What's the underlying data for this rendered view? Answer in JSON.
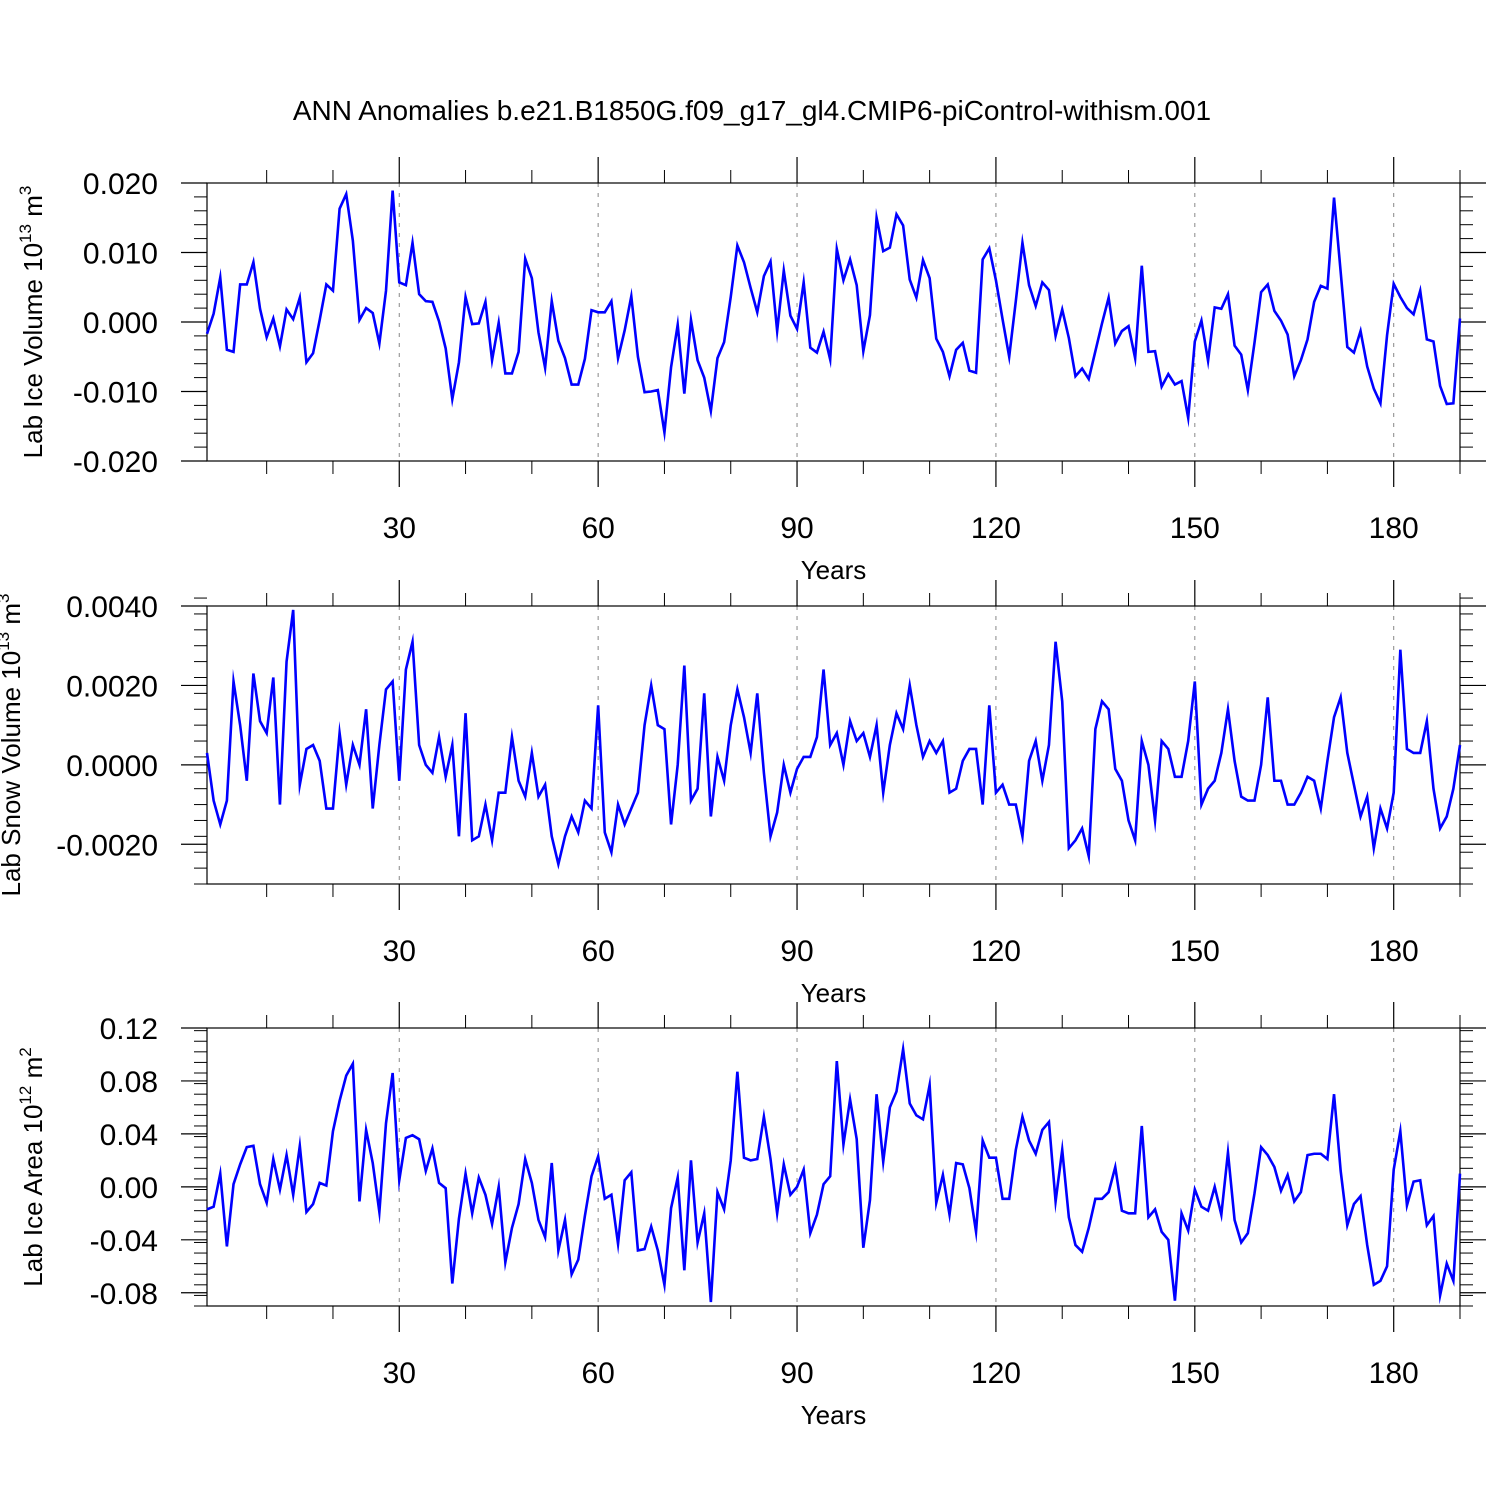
{
  "figure": {
    "title": "ANN Anomalies b.e21.B1850G.f09_g17_gl4.CMIP6-piControl-withism.001",
    "line_color": "#0000ff",
    "grid_color": "#888888"
  },
  "chart_data": [
    {
      "type": "line",
      "ylabel": "Lab Ice Volume",
      "unit_base": "10",
      "unit_exp": "13",
      "unit_sym": "m",
      "unit_sym_exp": "3",
      "xlabel": "Years",
      "xlim": [
        1,
        190
      ],
      "ylim": [
        -0.02,
        0.02
      ],
      "xticks": [
        30,
        60,
        90,
        120,
        150,
        180
      ],
      "xtick_labels": [
        "30",
        "60",
        "90",
        "120",
        "150",
        "180"
      ],
      "yticks": [
        0.02,
        0.01,
        0.0,
        -0.01,
        -0.02
      ],
      "ytick_labels": [
        "0.020",
        "0.010",
        "0.000",
        "-0.010",
        "-0.020"
      ],
      "y_minor_step": 0.002,
      "values": [
        -0.0017,
        0.0012,
        0.0064,
        -0.004,
        -0.0043,
        0.0054,
        0.0054,
        0.0086,
        0.0019,
        -0.0022,
        0.0005,
        -0.0035,
        0.0018,
        0.0004,
        0.0035,
        -0.0058,
        -0.0045,
        0.0003,
        0.0054,
        0.0045,
        0.0163,
        0.0184,
        0.0117,
        0.0003,
        0.002,
        0.0013,
        -0.0031,
        0.0045,
        0.0189,
        0.0057,
        0.0053,
        0.0114,
        0.004,
        0.003,
        0.0029,
        0.0001,
        -0.0038,
        -0.0111,
        -0.0058,
        0.0036,
        -0.0003,
        -0.0002,
        0.0029,
        -0.0055,
        -0.0001,
        -0.0074,
        -0.0074,
        -0.0043,
        0.0091,
        0.0063,
        -0.0015,
        -0.0066,
        0.003,
        -0.0027,
        -0.0052,
        -0.009,
        -0.009,
        -0.0053,
        0.0017,
        0.0014,
        0.0014,
        0.003,
        -0.0052,
        -0.0012,
        0.0037,
        -0.005,
        -0.0101,
        -0.01,
        -0.0098,
        -0.0159,
        -0.0065,
        -0.0004,
        -0.0103,
        0.0003,
        -0.0055,
        -0.008,
        -0.0128,
        -0.0052,
        -0.0029,
        0.0036,
        0.011,
        0.0086,
        0.0049,
        0.0014,
        0.0066,
        0.0087,
        -0.0013,
        0.0074,
        0.0009,
        -0.001,
        0.0057,
        -0.0037,
        -0.0044,
        -0.0014,
        -0.0054,
        0.0105,
        0.006,
        0.009,
        0.0053,
        -0.0042,
        0.001,
        0.015,
        0.0102,
        0.0107,
        0.0155,
        0.0139,
        0.0061,
        0.0035,
        0.0089,
        0.0063,
        -0.0024,
        -0.0043,
        -0.0078,
        -0.004,
        -0.003,
        -0.007,
        -0.0073,
        0.009,
        0.0106,
        0.006,
        0.0004,
        -0.005,
        0.003,
        0.0114,
        0.0053,
        0.0023,
        0.0057,
        0.0046,
        -0.002,
        0.0018,
        -0.0023,
        -0.0078,
        -0.0067,
        -0.0082,
        -0.0042,
        -0.0002,
        0.0035,
        -0.0031,
        -0.0013,
        -0.0006,
        -0.0052,
        0.0081,
        -0.0043,
        -0.0042,
        -0.0093,
        -0.0075,
        -0.009,
        -0.0085,
        -0.0138,
        -0.0028,
        0.0002,
        -0.0056,
        0.0021,
        0.0019,
        0.004,
        -0.0034,
        -0.0047,
        -0.0098,
        -0.003,
        0.0043,
        0.0054,
        0.0016,
        0.0002,
        -0.0018,
        -0.0078,
        -0.0055,
        -0.0025,
        0.0029,
        0.0052,
        0.0048,
        0.0179,
        0.0072,
        -0.0036,
        -0.0044,
        -0.0013,
        -0.0064,
        -0.0096,
        -0.0117,
        -0.0019,
        0.0055,
        0.0036,
        0.002,
        0.0011,
        0.0045,
        -0.0025,
        -0.0028,
        -0.0092,
        -0.0118,
        -0.0117,
        0.0005
      ]
    },
    {
      "type": "line",
      "ylabel": "Lab Snow Volume",
      "unit_base": "10",
      "unit_exp": "13",
      "unit_sym": "m",
      "unit_sym_exp": "3",
      "xlabel": "Years",
      "xlim": [
        1,
        190
      ],
      "ylim": [
        -0.003,
        0.004
      ],
      "xticks": [
        30,
        60,
        90,
        120,
        150,
        180
      ],
      "xtick_labels": [
        "30",
        "60",
        "90",
        "120",
        "150",
        "180"
      ],
      "yticks": [
        0.004,
        0.002,
        0.0,
        -0.002
      ],
      "ytick_labels": [
        "0.0040",
        "0.0020",
        "0.0000",
        "-0.0020"
      ],
      "y_minor_step": 0.0004,
      "values": [
        0.0003,
        -0.0009,
        -0.0015,
        -0.0009,
        0.0021,
        0.001,
        -0.0004,
        0.0023,
        0.0011,
        0.0008,
        0.0022,
        -0.001,
        0.0026,
        0.0039,
        -0.0005,
        0.0004,
        0.0005,
        0.0001,
        -0.0011,
        -0.0011,
        0.0008,
        -0.0005,
        0.0005,
        0.0,
        0.0014,
        -0.0011,
        0.0005,
        0.0019,
        0.0021,
        -0.0004,
        0.0024,
        0.0031,
        0.0005,
        0.0,
        -0.0002,
        0.0007,
        -0.0003,
        0.0005,
        -0.0018,
        0.0013,
        -0.0019,
        -0.0018,
        -0.001,
        -0.0019,
        -0.0007,
        -0.0007,
        0.0007,
        -0.0004,
        -0.0008,
        0.0003,
        -0.0008,
        -0.0005,
        -0.0018,
        -0.0025,
        -0.0018,
        -0.0013,
        -0.0017,
        -0.0009,
        -0.0011,
        0.0015,
        -0.0017,
        -0.0022,
        -0.001,
        -0.0015,
        -0.0011,
        -0.0007,
        0.001,
        0.002,
        0.001,
        0.0009,
        -0.0015,
        0.0,
        0.0025,
        -0.0009,
        -0.0006,
        0.0018,
        -0.0013,
        0.0002,
        -0.0004,
        0.001,
        0.0019,
        0.0012,
        0.0003,
        0.0018,
        -0.0002,
        -0.0018,
        -0.0012,
        0.0,
        -0.0007,
        -0.0001,
        0.0002,
        0.0002,
        0.0007,
        0.0024,
        0.0005,
        0.0008,
        0.0,
        0.0011,
        0.0006,
        0.0008,
        0.0002,
        0.001,
        -0.0007,
        0.0005,
        0.0013,
        0.0009,
        0.002,
        0.001,
        0.0002,
        0.0006,
        0.0003,
        0.0006,
        -0.0007,
        -0.0006,
        0.0001,
        0.0004,
        0.0004,
        -0.001,
        0.0015,
        -0.0007,
        -0.0005,
        -0.001,
        -0.001,
        -0.0018,
        0.0001,
        0.0006,
        -0.0004,
        0.0005,
        0.0031,
        0.0016,
        -0.0021,
        -0.0019,
        -0.0016,
        -0.0023,
        0.0009,
        0.0016,
        0.0014,
        -0.0001,
        -0.0004,
        -0.0014,
        -0.0019,
        0.0006,
        0.0,
        -0.0014,
        0.0006,
        0.0004,
        -0.0003,
        -0.0003,
        0.0006,
        0.0021,
        -0.001,
        -0.0006,
        -0.0004,
        0.0003,
        0.0014,
        0.0001,
        -0.0008,
        -0.0009,
        -0.0009,
        0.0,
        0.0017,
        -0.0004,
        -0.0004,
        -0.001,
        -0.001,
        -0.0007,
        -0.0003,
        -0.0004,
        -0.0011,
        0.0001,
        0.0012,
        0.0017,
        0.0003,
        -0.0005,
        -0.0013,
        -0.0008,
        -0.0021,
        -0.0011,
        -0.0016,
        -0.0007,
        0.0029,
        0.0004,
        0.0003,
        0.0003,
        0.0011,
        -0.0006,
        -0.0016,
        -0.0013,
        -0.0006,
        0.0005
      ]
    },
    {
      "type": "line",
      "ylabel": "Lab Ice Area",
      "unit_base": "10",
      "unit_exp": "12",
      "unit_sym": "m",
      "unit_sym_exp": "2",
      "xlabel": "Years",
      "xlim": [
        1,
        190
      ],
      "ylim": [
        -0.09,
        0.12
      ],
      "xticks": [
        30,
        60,
        90,
        120,
        150,
        180
      ],
      "xtick_labels": [
        "30",
        "60",
        "90",
        "120",
        "150",
        "180"
      ],
      "yticks": [
        0.12,
        0.08,
        0.04,
        0.0,
        -0.04,
        -0.08
      ],
      "ytick_labels": [
        "0.12",
        "0.08",
        "0.04",
        "0.00",
        "-0.04",
        "-0.08"
      ],
      "y_minor_step": 0.008,
      "values": [
        -0.017,
        -0.015,
        0.01,
        -0.045,
        0.002,
        0.017,
        0.03,
        0.031,
        0.002,
        -0.012,
        0.021,
        -0.002,
        0.024,
        -0.006,
        0.031,
        -0.019,
        -0.013,
        0.003,
        0.001,
        0.042,
        0.065,
        0.084,
        0.093,
        -0.011,
        0.043,
        0.018,
        -0.019,
        0.048,
        0.086,
        0.005,
        0.037,
        0.039,
        0.036,
        0.012,
        0.029,
        0.003,
        -0.001,
        -0.073,
        -0.024,
        0.01,
        -0.02,
        0.007,
        -0.006,
        -0.028,
        0.0,
        -0.057,
        -0.031,
        -0.013,
        0.021,
        0.003,
        -0.025,
        -0.038,
        0.018,
        -0.048,
        -0.025,
        -0.066,
        -0.055,
        -0.022,
        0.008,
        0.023,
        -0.009,
        -0.006,
        -0.043,
        0.005,
        0.011,
        -0.048,
        -0.047,
        -0.03,
        -0.048,
        -0.074,
        -0.016,
        0.007,
        -0.063,
        0.02,
        -0.042,
        -0.02,
        -0.087,
        -0.004,
        -0.017,
        0.02,
        0.087,
        0.022,
        0.02,
        0.021,
        0.053,
        0.021,
        -0.02,
        0.017,
        -0.006,
        0.0,
        0.013,
        -0.035,
        -0.021,
        0.002,
        0.008,
        0.095,
        0.032,
        0.066,
        0.036,
        -0.046,
        -0.01,
        0.07,
        0.019,
        0.06,
        0.072,
        0.104,
        0.063,
        0.054,
        0.051,
        0.077,
        -0.012,
        0.009,
        -0.021,
        0.018,
        0.017,
        -0.001,
        -0.034,
        0.035,
        0.022,
        0.022,
        -0.009,
        -0.009,
        0.028,
        0.053,
        0.035,
        0.025,
        0.043,
        0.049,
        -0.011,
        0.028,
        -0.023,
        -0.044,
        -0.049,
        -0.031,
        -0.009,
        -0.009,
        -0.004,
        0.015,
        -0.018,
        -0.02,
        -0.02,
        0.046,
        -0.023,
        -0.017,
        -0.034,
        -0.04,
        -0.086,
        -0.02,
        -0.033,
        -0.002,
        -0.015,
        -0.018,
        0.0,
        -0.021,
        0.026,
        -0.025,
        -0.042,
        -0.035,
        -0.005,
        0.03,
        0.024,
        0.015,
        -0.003,
        0.009,
        -0.011,
        -0.004,
        0.024,
        0.025,
        0.025,
        0.021,
        0.07,
        0.012,
        -0.029,
        -0.013,
        -0.007,
        -0.044,
        -0.074,
        -0.071,
        -0.06,
        0.013,
        0.042,
        -0.014,
        0.004,
        0.005,
        -0.029,
        -0.022,
        -0.082,
        -0.058,
        -0.071,
        0.01
      ]
    }
  ]
}
